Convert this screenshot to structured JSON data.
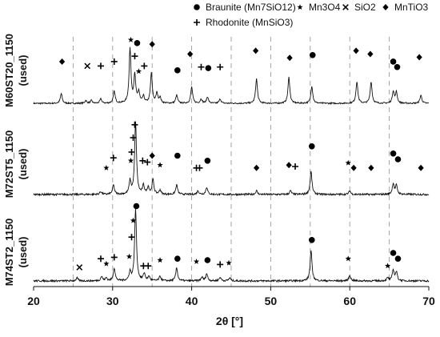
{
  "chart_data": {
    "type": "line",
    "xlabel": "2θ [°]",
    "ylabel": "",
    "xlim": [
      20,
      70
    ],
    "x_ticks": [
      "20",
      "30",
      "40",
      "50",
      "60",
      "70"
    ],
    "x_tick_values": [
      20,
      30,
      40,
      50,
      60,
      70
    ],
    "vertical_dashed_lines_at": [
      25,
      30,
      35,
      40,
      45,
      50,
      55,
      60,
      65
    ],
    "legend": [
      {
        "symbol": "●",
        "label": "Braunite (Mn7SiO12)",
        "marker": "circle"
      },
      {
        "symbol": "★",
        "label": "Mn3O4",
        "marker": "star"
      },
      {
        "symbol": "×",
        "label": "SiO2",
        "marker": "cross"
      },
      {
        "symbol": "◆",
        "label": "MnTiO3",
        "marker": "diamond"
      },
      {
        "symbol": "+",
        "label": "Rhodonite (MnSiO3)",
        "marker": "plus"
      }
    ],
    "panels": [
      {
        "name": "M60ST20_1150",
        "name_sub": "(used)",
        "peaks": [
          {
            "x": 23.5,
            "h": 0.18
          },
          {
            "x": 26.6,
            "h": 0.05
          },
          {
            "x": 27.3,
            "h": 0.05
          },
          {
            "x": 28.5,
            "h": 0.08
          },
          {
            "x": 30.2,
            "h": 0.22
          },
          {
            "x": 32.2,
            "h": 1.0
          },
          {
            "x": 32.8,
            "h": 0.5
          },
          {
            "x": 33.3,
            "h": 0.2
          },
          {
            "x": 33.9,
            "h": 0.12
          },
          {
            "x": 34.9,
            "h": 0.55
          },
          {
            "x": 35.6,
            "h": 0.18
          },
          {
            "x": 36.0,
            "h": 0.1
          },
          {
            "x": 38.1,
            "h": 0.15
          },
          {
            "x": 40.0,
            "h": 0.3
          },
          {
            "x": 41.2,
            "h": 0.08
          },
          {
            "x": 42.0,
            "h": 0.12
          },
          {
            "x": 43.6,
            "h": 0.08
          },
          {
            "x": 48.2,
            "h": 0.45
          },
          {
            "x": 52.3,
            "h": 0.48
          },
          {
            "x": 55.2,
            "h": 0.32
          },
          {
            "x": 60.9,
            "h": 0.4
          },
          {
            "x": 62.7,
            "h": 0.4
          },
          {
            "x": 65.5,
            "h": 0.22
          },
          {
            "x": 65.9,
            "h": 0.2
          },
          {
            "x": 69.0,
            "h": 0.15
          }
        ],
        "markers": [
          {
            "type": "diamond",
            "x": 23.6,
            "level": 0.78
          },
          {
            "type": "cross",
            "x": 26.8,
            "level": 0.7
          },
          {
            "type": "plus",
            "x": 28.5,
            "level": 0.7
          },
          {
            "type": "plus",
            "x": 30.2,
            "level": 0.78
          },
          {
            "type": "plus",
            "x": 32.8,
            "level": 0.88
          },
          {
            "type": "circle",
            "x": 33.1,
            "level": 1.12
          },
          {
            "type": "star",
            "x": 32.3,
            "level": 1.18
          },
          {
            "type": "star",
            "x": 33.3,
            "level": 0.6
          },
          {
            "type": "plus",
            "x": 34.0,
            "level": 0.7
          },
          {
            "type": "diamond",
            "x": 35.0,
            "level": 1.1
          },
          {
            "type": "circle",
            "x": 38.2,
            "level": 0.62
          },
          {
            "type": "diamond",
            "x": 39.8,
            "level": 0.92
          },
          {
            "type": "plus",
            "x": 41.2,
            "level": 0.68
          },
          {
            "type": "circle",
            "x": 42.1,
            "level": 0.66
          },
          {
            "type": "plus",
            "x": 43.6,
            "level": 0.68
          },
          {
            "type": "diamond",
            "x": 48.1,
            "level": 0.98
          },
          {
            "type": "diamond",
            "x": 52.4,
            "level": 0.85
          },
          {
            "type": "circle",
            "x": 55.3,
            "level": 0.9
          },
          {
            "type": "diamond",
            "x": 60.8,
            "level": 0.98
          },
          {
            "type": "diamond",
            "x": 62.6,
            "level": 0.92
          },
          {
            "type": "circle",
            "x": 65.5,
            "level": 0.78
          },
          {
            "type": "circle",
            "x": 66.0,
            "level": 0.68
          },
          {
            "type": "diamond",
            "x": 68.8,
            "level": 0.86
          }
        ]
      },
      {
        "name": "M72ST5_1150",
        "name_sub": "(used)",
        "peaks": [
          {
            "x": 28.5,
            "h": 0.04
          },
          {
            "x": 30.1,
            "h": 0.13
          },
          {
            "x": 32.2,
            "h": 0.18
          },
          {
            "x": 32.9,
            "h": 1.0
          },
          {
            "x": 33.9,
            "h": 0.12
          },
          {
            "x": 34.5,
            "h": 0.1
          },
          {
            "x": 35.1,
            "h": 0.2
          },
          {
            "x": 36.0,
            "h": 0.06
          },
          {
            "x": 38.1,
            "h": 0.13
          },
          {
            "x": 40.8,
            "h": 0.05
          },
          {
            "x": 41.9,
            "h": 0.1
          },
          {
            "x": 48.2,
            "h": 0.05
          },
          {
            "x": 52.5,
            "h": 0.05
          },
          {
            "x": 55.1,
            "h": 0.32
          },
          {
            "x": 60.0,
            "h": 0.05
          },
          {
            "x": 65.5,
            "h": 0.15
          },
          {
            "x": 65.9,
            "h": 0.12
          }
        ],
        "markers": [
          {
            "type": "star",
            "x": 29.2,
            "level": 0.38
          },
          {
            "type": "plus",
            "x": 30.1,
            "level": 0.52
          },
          {
            "type": "star",
            "x": 32.3,
            "level": 0.48
          },
          {
            "type": "plus",
            "x": 32.4,
            "level": 0.6
          },
          {
            "type": "plus",
            "x": 32.6,
            "level": 0.8
          },
          {
            "type": "plus",
            "x": 32.8,
            "level": 0.98
          },
          {
            "type": "plus",
            "x": 33.8,
            "level": 0.48
          },
          {
            "type": "plus",
            "x": 34.4,
            "level": 0.46
          },
          {
            "type": "diamond",
            "x": 35.0,
            "level": 0.55
          },
          {
            "type": "star",
            "x": 36.0,
            "level": 0.42
          },
          {
            "type": "circle",
            "x": 38.2,
            "level": 0.55
          },
          {
            "type": "plus",
            "x": 40.6,
            "level": 0.38
          },
          {
            "type": "plus",
            "x": 41.0,
            "level": 0.38
          },
          {
            "type": "circle",
            "x": 42.0,
            "level": 0.48
          },
          {
            "type": "diamond",
            "x": 48.2,
            "level": 0.38
          },
          {
            "type": "diamond",
            "x": 52.3,
            "level": 0.42
          },
          {
            "type": "plus",
            "x": 53.1,
            "level": 0.4
          },
          {
            "type": "circle",
            "x": 55.2,
            "level": 0.68
          },
          {
            "type": "star",
            "x": 59.8,
            "level": 0.45
          },
          {
            "type": "diamond",
            "x": 60.5,
            "level": 0.38
          },
          {
            "type": "diamond",
            "x": 62.7,
            "level": 0.38
          },
          {
            "type": "circle",
            "x": 65.5,
            "level": 0.58
          },
          {
            "type": "circle",
            "x": 66.1,
            "level": 0.5
          },
          {
            "type": "diamond",
            "x": 69.0,
            "level": 0.38
          }
        ]
      },
      {
        "name": "M74ST2_1150",
        "name_sub": "(used)",
        "peaks": [
          {
            "x": 25.5,
            "h": 0.04
          },
          {
            "x": 28.6,
            "h": 0.06
          },
          {
            "x": 29.2,
            "h": 0.04
          },
          {
            "x": 30.2,
            "h": 0.18
          },
          {
            "x": 32.2,
            "h": 0.12
          },
          {
            "x": 32.9,
            "h": 1.0
          },
          {
            "x": 34.0,
            "h": 0.1
          },
          {
            "x": 34.6,
            "h": 0.06
          },
          {
            "x": 36.0,
            "h": 0.06
          },
          {
            "x": 38.1,
            "h": 0.18
          },
          {
            "x": 41.3,
            "h": 0.05
          },
          {
            "x": 41.9,
            "h": 0.1
          },
          {
            "x": 43.6,
            "h": 0.05
          },
          {
            "x": 44.8,
            "h": 0.04
          },
          {
            "x": 55.1,
            "h": 0.42
          },
          {
            "x": 60.0,
            "h": 0.08
          },
          {
            "x": 64.8,
            "h": 0.04
          },
          {
            "x": 65.5,
            "h": 0.15
          },
          {
            "x": 65.9,
            "h": 0.12
          }
        ],
        "markers": [
          {
            "type": "cross",
            "x": 25.8,
            "level": 0.2
          },
          {
            "type": "plus",
            "x": 28.5,
            "level": 0.32
          },
          {
            "type": "star",
            "x": 29.2,
            "level": 0.25
          },
          {
            "type": "plus",
            "x": 30.2,
            "level": 0.34
          },
          {
            "type": "star",
            "x": 32.1,
            "level": 0.35
          },
          {
            "type": "plus",
            "x": 32.4,
            "level": 0.62
          },
          {
            "type": "star",
            "x": 32.6,
            "level": 0.85
          },
          {
            "type": "circle",
            "x": 33.0,
            "level": 1.05
          },
          {
            "type": "plus",
            "x": 33.9,
            "level": 0.22
          },
          {
            "type": "plus",
            "x": 34.5,
            "level": 0.22
          },
          {
            "type": "star",
            "x": 36.0,
            "level": 0.3
          },
          {
            "type": "circle",
            "x": 38.2,
            "level": 0.32
          },
          {
            "type": "star",
            "x": 40.6,
            "level": 0.28
          },
          {
            "type": "circle",
            "x": 42.0,
            "level": 0.3
          },
          {
            "type": "plus",
            "x": 43.6,
            "level": 0.24
          },
          {
            "type": "star",
            "x": 44.7,
            "level": 0.26
          },
          {
            "type": "circle",
            "x": 55.2,
            "level": 0.58
          },
          {
            "type": "star",
            "x": 59.8,
            "level": 0.32
          },
          {
            "type": "star",
            "x": 64.8,
            "level": 0.22
          },
          {
            "type": "circle",
            "x": 65.5,
            "level": 0.4
          },
          {
            "type": "circle",
            "x": 66.1,
            "level": 0.32
          }
        ]
      }
    ]
  }
}
